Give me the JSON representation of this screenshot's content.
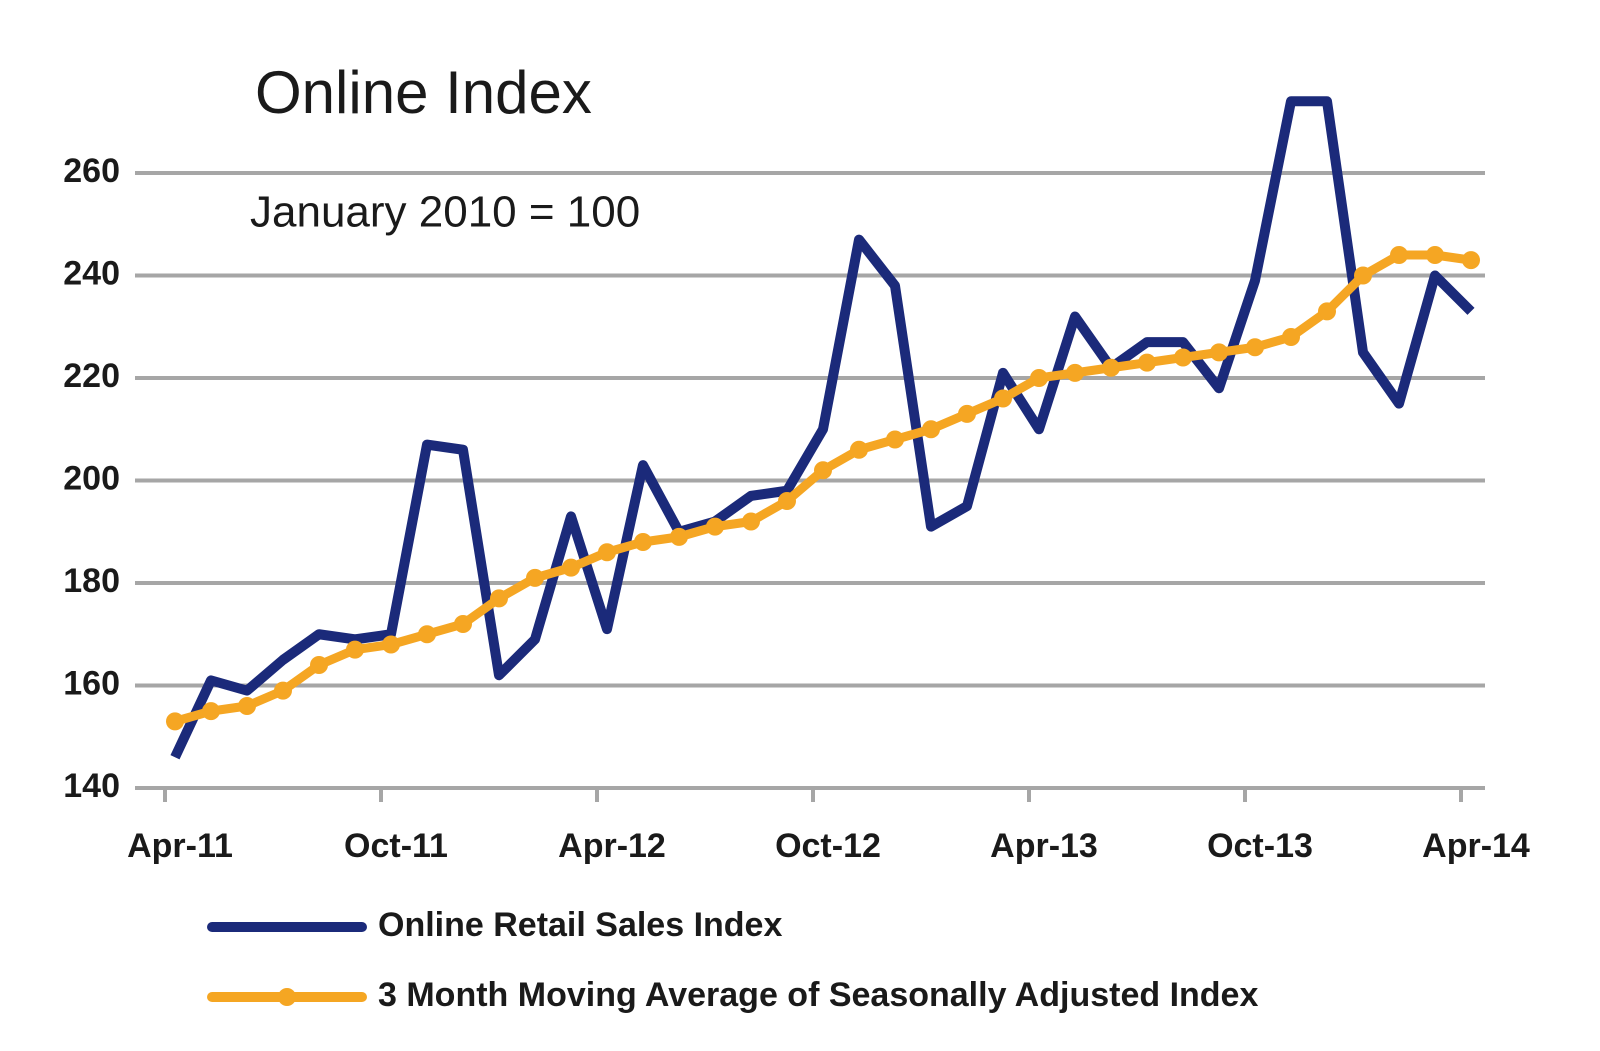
{
  "chart_data": {
    "type": "line",
    "title": "Online Index",
    "subtitle": "January 2010 = 100",
    "categories": [
      "Apr-11",
      null,
      null,
      null,
      null,
      null,
      "Oct-11",
      null,
      null,
      null,
      null,
      null,
      "Apr-12",
      null,
      null,
      null,
      null,
      null,
      "Oct-12",
      null,
      null,
      null,
      null,
      null,
      "Apr-13",
      null,
      null,
      null,
      null,
      null,
      "Oct-13",
      null,
      null,
      null,
      null,
      null,
      "Apr-14"
    ],
    "series": [
      {
        "name": "Online Retail Sales Index",
        "color": "#1b2a7a",
        "values": [
          146,
          161,
          159,
          165,
          170,
          169,
          170,
          207,
          206,
          162,
          169,
          193,
          171,
          203,
          190,
          192,
          197,
          198,
          210,
          247,
          238,
          191,
          195,
          221,
          210,
          232,
          222,
          227,
          227,
          218,
          239,
          274,
          274,
          225,
          215,
          240,
          233
        ]
      },
      {
        "name": "3 Month Moving Average of Seasonally Adjusted Index",
        "color": "#f5a623",
        "values": [
          153,
          155,
          156,
          159,
          164,
          167,
          168,
          170,
          172,
          177,
          181,
          183,
          186,
          188,
          189,
          191,
          192,
          196,
          202,
          206,
          208,
          210,
          213,
          216,
          220,
          221,
          222,
          223,
          224,
          225,
          226,
          228,
          233,
          240,
          244,
          244,
          243
        ]
      }
    ],
    "ylim": [
      140,
      260
    ],
    "yticks": [
      140,
      160,
      180,
      200,
      220,
      240,
      260
    ],
    "grid": true
  }
}
